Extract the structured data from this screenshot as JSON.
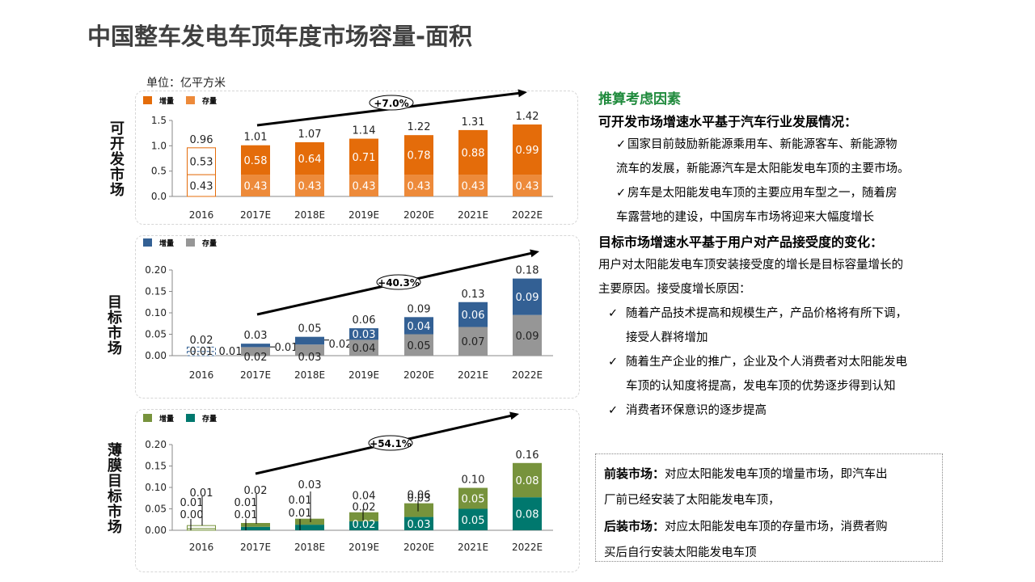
{
  "title": "中国整车发电车顶年度市场容量-面积",
  "unit_label": "单位：亿平方米",
  "colors": {
    "orange_increment": "#e46c0a",
    "orange_stock": "#ed8a3a",
    "blue_increment": "#336094",
    "gray_stock": "#969696",
    "green_increment": "#77933c",
    "teal_stock": "#00786e",
    "heading_green": "#1f8a3c",
    "title_gray": "#404040"
  },
  "chart_data": [
    {
      "type": "bar",
      "stacked": true,
      "side_label": "可开发市场",
      "categories": [
        "2016",
        "2017E",
        "2018E",
        "2019E",
        "2020E",
        "2021E",
        "2022E"
      ],
      "series": [
        {
          "name": "存量",
          "values": [
            0.43,
            0.43,
            0.43,
            0.43,
            0.43,
            0.43,
            0.43
          ],
          "labels": [
            "0.43",
            "0.43",
            "0.43",
            "0.43",
            "0.43",
            "0.43",
            "0.43"
          ]
        },
        {
          "name": "增量",
          "values": [
            0.53,
            0.58,
            0.64,
            0.71,
            0.78,
            0.88,
            0.99
          ],
          "labels": [
            "0.53",
            "0.58",
            "0.64",
            "0.71",
            "0.78",
            "0.88",
            "0.99"
          ]
        }
      ],
      "totals": [
        "0.96",
        "1.01",
        "1.07",
        "1.14",
        "1.22",
        "1.31",
        "1.42"
      ],
      "legend": [
        "增量",
        "存量"
      ],
      "legend_position": "top-left",
      "growth_annotation": "+7.0%",
      "ylim": [
        0,
        1.5
      ],
      "yticks": [
        "0.0",
        "0.5",
        "1.0",
        "1.5"
      ],
      "ytick_values": [
        0,
        0.5,
        1.0,
        1.5
      ],
      "first_bar_outline_only": true
    },
    {
      "type": "bar",
      "stacked": true,
      "side_label": "目标市场",
      "categories": [
        "2016",
        "2017E",
        "2018E",
        "2019E",
        "2020E",
        "2021E",
        "2022E"
      ],
      "series": [
        {
          "name": "存量",
          "values": [
            0.01,
            0.02,
            0.026,
            0.037,
            0.05,
            0.067,
            0.095
          ],
          "labels": [
            "0.01",
            "0.02",
            "0.03",
            "0.04",
            "0.05",
            "0.07",
            "0.09"
          ]
        },
        {
          "name": "增量",
          "values": [
            0.01,
            0.008,
            0.018,
            0.027,
            0.04,
            0.058,
            0.085
          ],
          "labels": [
            "0.01",
            "0.01",
            "0.02",
            "0.03",
            "0.04",
            "0.06",
            "0.09"
          ]
        }
      ],
      "totals": [
        "0.02",
        "0.03",
        "0.05",
        "0.06",
        "0.09",
        "0.13",
        "0.18"
      ],
      "legend": [
        "增量",
        "存量"
      ],
      "legend_position": "top-left",
      "growth_annotation": "+40.3%",
      "ylim": [
        0,
        0.2
      ],
      "yticks": [
        "0.00",
        "0.05",
        "0.10",
        "0.15",
        "0.20"
      ],
      "ytick_values": [
        0,
        0.05,
        0.1,
        0.15,
        0.2
      ],
      "first_bar_outline_only": true
    },
    {
      "type": "bar",
      "stacked": true,
      "side_label": "薄膜目标市场",
      "categories": [
        "2016",
        "2017E",
        "2018E",
        "2019E",
        "2020E",
        "2021E",
        "2022E"
      ],
      "series": [
        {
          "name": "存量",
          "values": [
            0.004,
            0.008,
            0.013,
            0.021,
            0.031,
            0.05,
            0.077
          ],
          "labels": [
            "0.00",
            "0.01",
            "0.01",
            "0.02",
            "0.03",
            "0.05",
            "0.08"
          ]
        },
        {
          "name": "增量",
          "values": [
            0.007,
            0.009,
            0.014,
            0.021,
            0.032,
            0.049,
            0.08
          ],
          "labels": [
            "0.01",
            "0.01",
            "0.01",
            "0.02",
            "0.03",
            "0.05",
            "0.08"
          ]
        }
      ],
      "totals": [
        "0.01",
        "0.02",
        "0.03",
        "0.04",
        "0.06",
        "0.10",
        "0.16"
      ],
      "legend": [
        "增量",
        "存量"
      ],
      "legend_position": "top-left",
      "growth_annotation": "+54.1%",
      "ylim": [
        0,
        0.2
      ],
      "yticks": [
        "0.00",
        "0.05",
        "0.10",
        "0.15",
        "0.20"
      ],
      "ytick_values": [
        0,
        0.05,
        0.1,
        0.15,
        0.2
      ],
      "first_bar_outline_only": true
    }
  ],
  "right_panel": {
    "heading": "推算考虑因素",
    "section1_title": "可开发市场增速水平基于汽车行业发展情况：",
    "section1_items": [
      {
        "line1": "国家目前鼓励新能源乘用车、新能源客车、新能源物",
        "line2": "流车的发展，新能源汽车是太阳能发电车顶的主要市场。"
      },
      {
        "line1": "房车是太阳能发电车顶的主要应用车型之一，随着房",
        "line2": "车露营地的建设，中国房车市场将迎来大幅度增长"
      }
    ],
    "section2_title": "目标市场增速水平基于用户对产品接受度的变化：",
    "section2_para1": "用户对太阳能发电车顶安装接受度的增长是目标容量增长的",
    "section2_para2": "主要原因。接受度增长原因：",
    "section2_items": [
      {
        "line1": "随着产品技术提高和规模生产，产品价格将有所下调，",
        "line2": "接受人群将增加"
      },
      {
        "line1": "随着生产企业的推广，企业及个人消费者对太阳能发电",
        "line2": "车顶的认知度将提高，发电车顶的优势逐步得到认知"
      },
      {
        "line1": "消费者环保意识的逐步提高",
        "line2": ""
      }
    ],
    "check_glyph": "✓"
  },
  "note_box": {
    "front_label": "前装市场：",
    "front_text1": "对应太阳能发电车顶的增量市场，即汽车出",
    "front_text2": "厂前已经安装了太阳能发电车顶，",
    "rear_label": "后装市场：",
    "rear_text1": "对应太阳能发电车顶的存量市场，消费者购",
    "rear_text2": "买后自行安装太阳能发电车顶"
  }
}
